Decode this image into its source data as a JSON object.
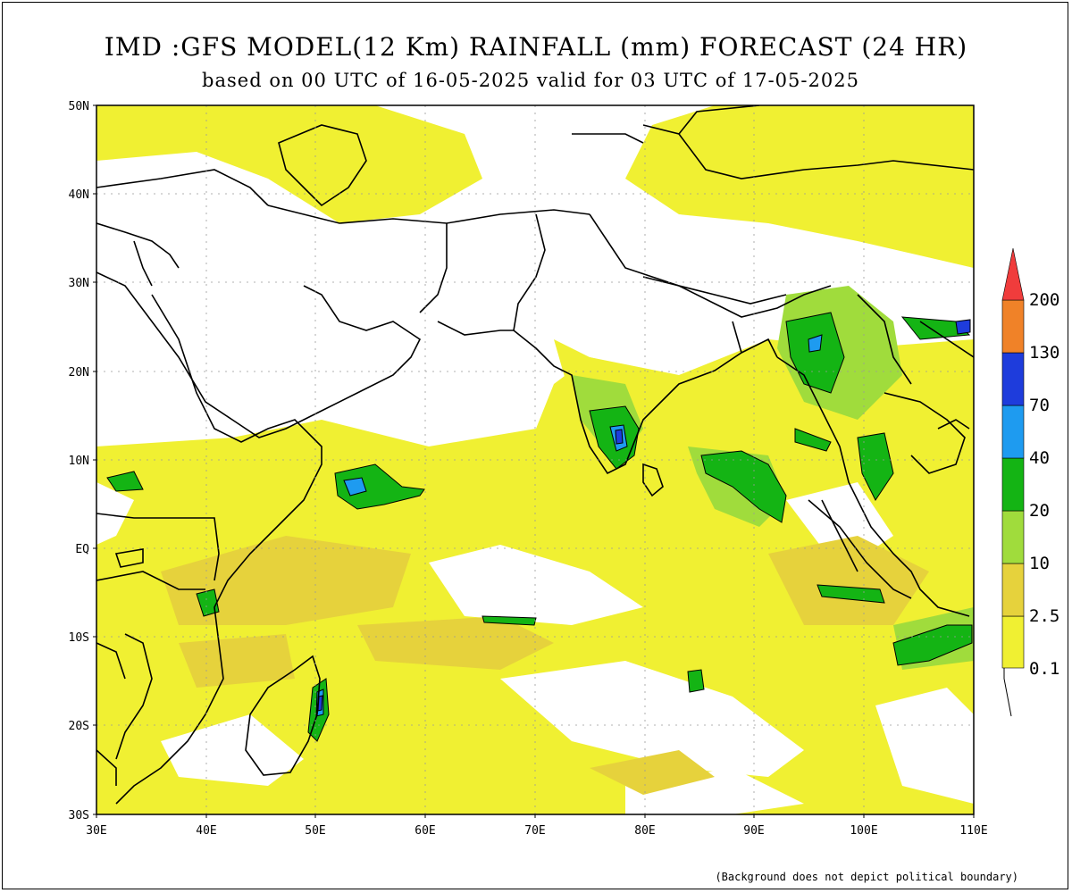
{
  "title": "IMD :GFS MODEL(12 Km) RAINFALL (mm) FORECAST (24 HR)",
  "subtitle": "based on 00 UTC of 16-05-2025 valid for 03 UTC of 17-05-2025",
  "footnote": "(Background does not depict political boundary)",
  "map": {
    "lon_range": [
      30,
      110
    ],
    "lat_range": [
      -30,
      50
    ],
    "lat_labels": [
      "50N",
      "40N",
      "30N",
      "20N",
      "10N",
      "EQ",
      "10S",
      "20S",
      "30S"
    ],
    "lon_labels": [
      "30E",
      "40E",
      "50E",
      "60E",
      "70E",
      "80E",
      "90E",
      "100E",
      "110E"
    ]
  },
  "legend": {
    "levels": [
      "0.1",
      "2.5",
      "10",
      "20",
      "40",
      "70",
      "130",
      "200"
    ],
    "colors": [
      "#f0f032",
      "#e6d23c",
      "#a0dc3c",
      "#14b414",
      "#1e9bf0",
      "#1e3cdc",
      "#f08228",
      "#f03c3c"
    ]
  },
  "colors": {
    "r_light": "#f0f032",
    "r_mod": "#e6d23c",
    "r_10": "#a0dc3c",
    "r_20": "#14b414",
    "r_40": "#1e9bf0",
    "r_70": "#1e3cdc"
  }
}
